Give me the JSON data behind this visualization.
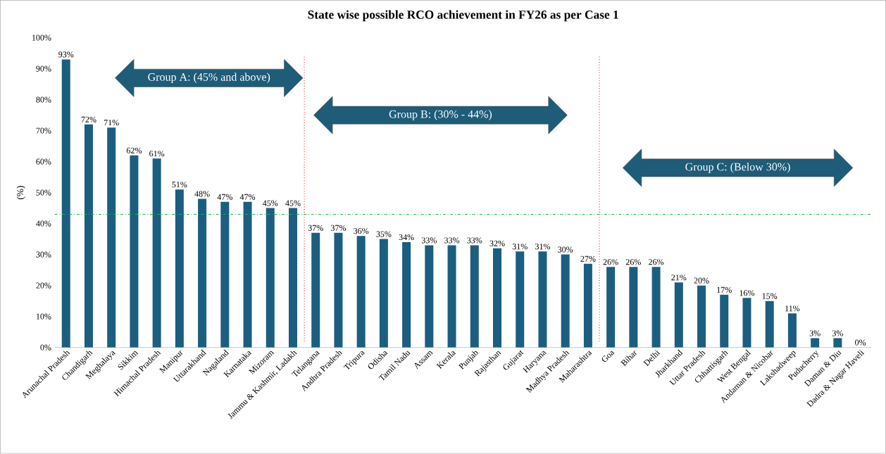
{
  "chart_data": {
    "type": "bar",
    "title": "State wise possible RCO achievement in FY26 as per Case 1",
    "ylabel": "(%)",
    "categories": [
      "Arunachal Pradesh",
      "Chandigarh",
      "Meghalaya",
      "Sikkim",
      "Himachal Pradesh",
      "Manipur",
      "Uttarakhand",
      "Nagaland",
      "Karnataka",
      "Mizoram",
      "Jammu & Kashmir, Ladakh",
      "Telangana",
      "Andhra Pradesh",
      "Tripura",
      "Odisha",
      "Tamil Nadu",
      "Assam",
      "Kerala",
      "Punjab",
      "Rajasthan",
      "Gujarat",
      "Haryana",
      "Madhya Pradesh",
      "Maharashtra",
      "Goa",
      "Bihar",
      "Delhi",
      "Jharkhand",
      "Uttar Pradesh",
      "Chhattisgarh",
      "West Bengal",
      "Andaman & Nicobar",
      "Lakshadweep",
      "Puducherry",
      "Daman & Diu",
      "Dadra & Nagar Haveli"
    ],
    "values": [
      93,
      72,
      71,
      62,
      61,
      51,
      48,
      47,
      47,
      45,
      45,
      37,
      37,
      36,
      35,
      34,
      33,
      33,
      33,
      32,
      31,
      31,
      30,
      27,
      26,
      26,
      26,
      21,
      20,
      17,
      16,
      15,
      11,
      3,
      3,
      0
    ],
    "color": "#1b5e80",
    "data_labels": true,
    "value_labels": [
      "93%",
      "72%",
      "71%",
      "62%",
      "61%",
      "51%",
      "48%",
      "47%",
      "47%",
      "45%",
      "45%",
      "37%",
      "37%",
      "36%",
      "35%",
      "34%",
      "33%",
      "33%",
      "33%",
      "32%",
      "31%",
      "31%",
      "30%",
      "27%",
      "26%",
      "26%",
      "26%",
      "21%",
      "20%",
      "17%",
      "16%",
      "15%",
      "11%",
      "3%",
      "3%",
      "0%"
    ],
    "ylim": [
      0,
      100
    ],
    "yticks": [
      {
        "value": 0,
        "label": "0%"
      },
      {
        "value": 10,
        "label": "10%"
      },
      {
        "value": 20,
        "label": "20%"
      },
      {
        "value": 30,
        "label": "30%"
      },
      {
        "value": 40,
        "label": "40%"
      },
      {
        "value": 50,
        "label": "50%"
      },
      {
        "value": 60,
        "label": "60%"
      },
      {
        "value": 70,
        "label": "70%"
      },
      {
        "value": 80,
        "label": "80%"
      },
      {
        "value": 90,
        "label": "90%"
      },
      {
        "value": 100,
        "label": "100%"
      }
    ],
    "ref_lines": [
      {
        "axis": "y",
        "value": 43,
        "color": "#22b14c",
        "line_style": "dashdotted"
      }
    ],
    "annotations": [
      "Group A: (45% and above)",
      "Group B: (30% - 44%)",
      "Group C: (Below 30%)"
    ],
    "grid": false
  }
}
